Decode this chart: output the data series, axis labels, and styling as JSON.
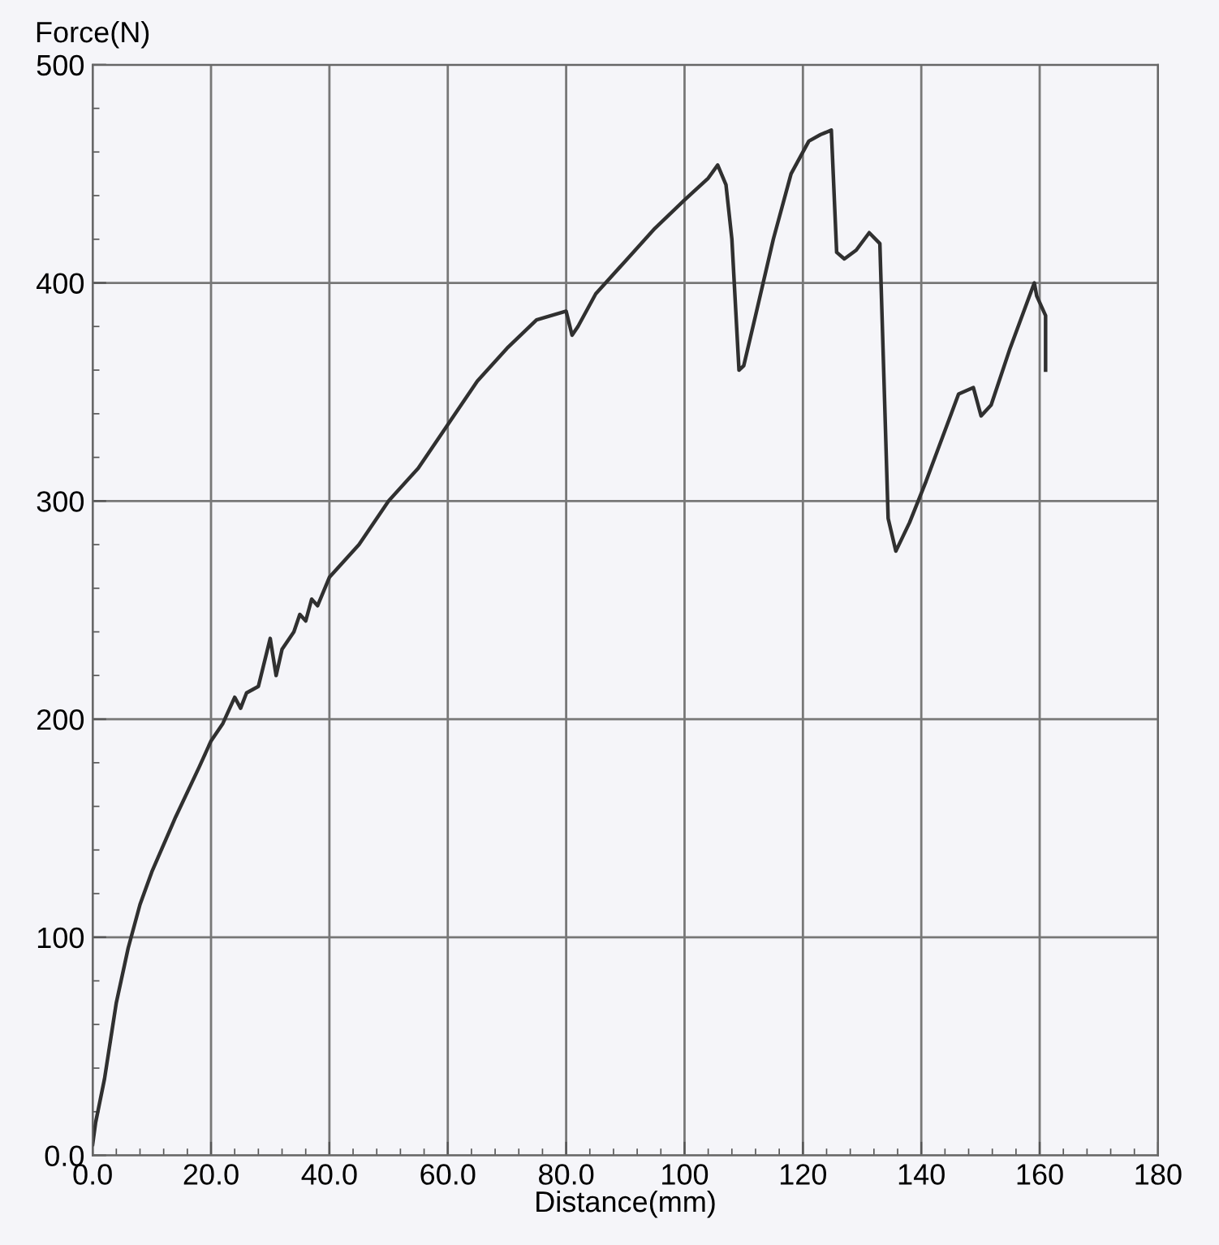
{
  "chart_data": {
    "type": "line",
    "xlabel": "Distance(mm)",
    "ylabel": "Force(N)",
    "xlim": [
      0,
      180
    ],
    "ylim": [
      0,
      500
    ],
    "xticks": [
      {
        "value": 0,
        "label": "0.0"
      },
      {
        "value": 20,
        "label": "20.0"
      },
      {
        "value": 40,
        "label": "40.0"
      },
      {
        "value": 60,
        "label": "60.0"
      },
      {
        "value": 80,
        "label": "80.0"
      },
      100,
      120,
      140,
      160,
      180
    ],
    "yticks": [
      {
        "value": 0,
        "label": "0.0"
      },
      100,
      200,
      300,
      400,
      500
    ],
    "grid": true,
    "marker": "none",
    "line_style": "solid",
    "series": [
      {
        "color": "#303030",
        "x": [
          0,
          0.5,
          2,
          4,
          6,
          8,
          10,
          14,
          18,
          20,
          22,
          24,
          25,
          26,
          28,
          30,
          31,
          32,
          34,
          35,
          36,
          37,
          38,
          40,
          45,
          50,
          55,
          60,
          65,
          70,
          75,
          80,
          81,
          82,
          85,
          90,
          95,
          100,
          104,
          105.6,
          107,
          108,
          109.2,
          110,
          112,
          115,
          118,
          121,
          123,
          124.8,
          125.7,
          127,
          129,
          131.2,
          133,
          134.4,
          135.7,
          138,
          140.8,
          143,
          146.3,
          148.8,
          150.1,
          151.8,
          155,
          159.1,
          159.5,
          161,
          161
        ],
        "values": [
          5,
          15,
          35,
          70,
          95,
          115,
          130,
          155,
          178,
          190,
          198,
          210,
          205,
          212,
          215,
          237,
          220,
          232,
          240,
          248,
          245,
          255,
          252,
          265,
          280,
          300,
          315,
          335,
          355,
          370,
          383,
          387,
          376,
          380,
          395,
          410,
          425,
          438,
          448,
          454,
          445,
          420,
          360,
          362,
          385,
          420,
          450,
          465,
          468,
          470,
          414,
          411,
          415,
          423,
          418,
          292,
          277,
          290,
          309,
          325,
          349,
          352,
          339,
          344,
          370,
          400,
          394,
          385,
          360
        ]
      }
    ]
  }
}
